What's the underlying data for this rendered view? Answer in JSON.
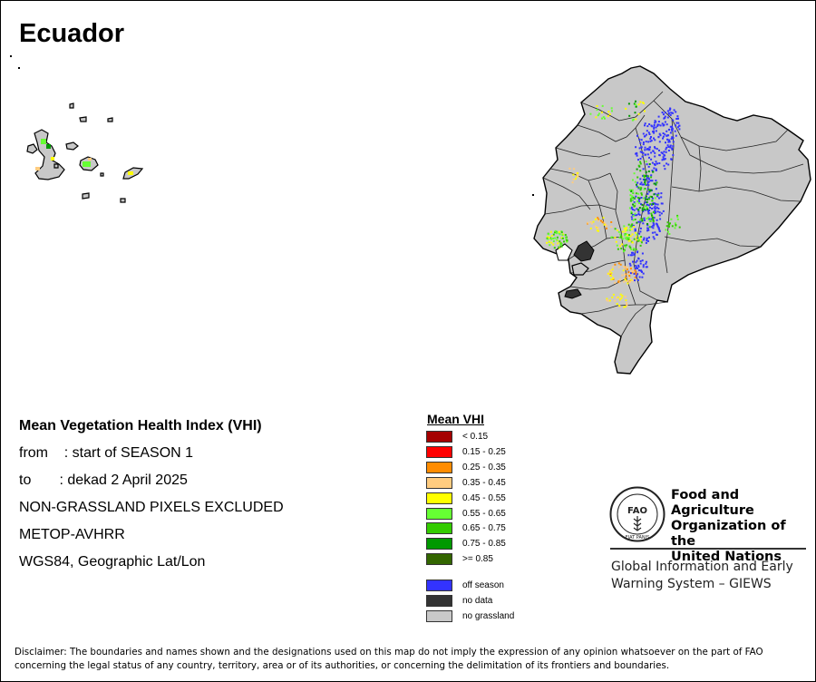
{
  "map": {
    "title": "Ecuador",
    "info_lines": [
      "Mean Vegetation Health Index (VHI)",
      "from    : start of SEASON 1",
      "to       : dekad 2 April 2025",
      "NON-GRASSLAND PIXELS EXCLUDED",
      "METOP-AVHRR",
      "WGS84, Geographic Lat/Lon"
    ],
    "colors": {
      "land": "#c8c8c8",
      "border": "#000000",
      "off_season": "#3a3aff",
      "no_data": "#333333"
    }
  },
  "legend": {
    "title": "Mean VHI",
    "classes": [
      {
        "label": "< 0.15",
        "color": "#a50000"
      },
      {
        "label": "0.15 - 0.25",
        "color": "#ff0000"
      },
      {
        "label": "0.25 - 0.35",
        "color": "#ff8c00"
      },
      {
        "label": "0.35 - 0.45",
        "color": "#ffcc80"
      },
      {
        "label": "0.45 - 0.55",
        "color": "#ffff00"
      },
      {
        "label": "0.55 - 0.65",
        "color": "#66ff33"
      },
      {
        "label": "0.65 - 0.75",
        "color": "#33cc00"
      },
      {
        "label": "0.75 - 0.85",
        "color": "#009900"
      },
      {
        "label": ">= 0.85",
        "color": "#336600"
      }
    ],
    "extra": [
      {
        "label": "off season",
        "color": "#3333ff"
      },
      {
        "label": "no data",
        "color": "#333333"
      },
      {
        "label": "no grassland",
        "color": "#c8c8c8"
      }
    ]
  },
  "org": {
    "logo_text": "FAO",
    "logo_motto": "FIAT PANIS",
    "name_lines": [
      "Food and Agriculture",
      "Organization of the",
      "United Nations"
    ],
    "giews_lines": [
      "Global Information and Early",
      "Warning System – GIEWS"
    ]
  },
  "disclaimer": "Disclaimer: The boundaries and names shown and the designations used on this map do not imply the expression of any opinion whatsoever on the part of FAO concerning the legal status of any country, territory, area or of its authorities, or concerning the delimitation of its frontiers and boundaries."
}
